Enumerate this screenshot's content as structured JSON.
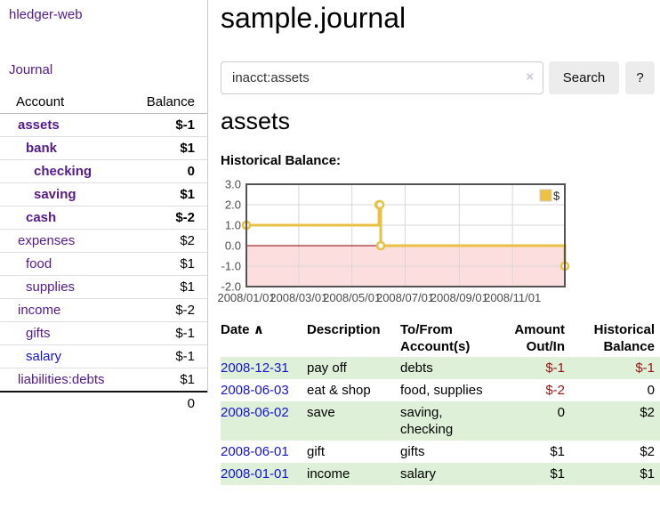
{
  "app": {
    "brand": "hledger-web",
    "nav_journal": "Journal"
  },
  "sidebar": {
    "header": {
      "account": "Account",
      "balance": "Balance"
    },
    "accounts": [
      {
        "name": "assets",
        "indent": 0,
        "bold": true,
        "name_color": "purple",
        "balance": "$-1",
        "balance_color": "neg-strong"
      },
      {
        "name": "bank",
        "indent": 1,
        "bold": true,
        "name_color": "purple",
        "balance": "$1",
        "balance_color": ""
      },
      {
        "name": "checking",
        "indent": 2,
        "bold": true,
        "name_color": "purple",
        "balance": "0",
        "balance_color": ""
      },
      {
        "name": "saving",
        "indent": 2,
        "bold": true,
        "name_color": "purple",
        "balance": "$1",
        "balance_color": ""
      },
      {
        "name": "cash",
        "indent": 1,
        "bold": true,
        "name_color": "purple",
        "balance": "$-2",
        "balance_color": "neg-strong"
      },
      {
        "name": "expenses",
        "indent": 0,
        "bold": false,
        "name_color": "purple",
        "balance": "$2",
        "balance_color": ""
      },
      {
        "name": "food",
        "indent": 1,
        "bold": false,
        "name_color": "purple",
        "balance": "$1",
        "balance_color": ""
      },
      {
        "name": "supplies",
        "indent": 1,
        "bold": false,
        "name_color": "purple",
        "balance": "$1",
        "balance_color": ""
      },
      {
        "name": "income",
        "indent": 0,
        "bold": false,
        "name_color": "purple",
        "balance": "$-2",
        "balance_color": "neg-soft"
      },
      {
        "name": "gifts",
        "indent": 1,
        "bold": false,
        "name_color": "purple",
        "balance": "$-1",
        "balance_color": "neg-soft"
      },
      {
        "name": "salary",
        "indent": 1,
        "bold": false,
        "name_color": "blue",
        "balance": "$-1",
        "balance_color": "neg-soft"
      },
      {
        "name": "liabilities:debts",
        "indent": 0,
        "bold": false,
        "name_color": "purple",
        "balance": "$1",
        "balance_color": ""
      }
    ],
    "total": "0"
  },
  "header": {
    "title": "sample.journal"
  },
  "search": {
    "value": "inacct:assets",
    "clear_icon": "×",
    "button_label": "Search",
    "help_label": "?"
  },
  "account_page": {
    "heading": "assets",
    "chart_label": "Historical Balance:"
  },
  "chart_data": {
    "type": "line",
    "title": "Historical Balance:",
    "x_range": [
      "2008-01-01",
      "2008-12-31"
    ],
    "ylim": [
      -2,
      3
    ],
    "y_ticks": [
      "3.0",
      "2.0",
      "1.0",
      "0.0",
      "-1.0",
      "-2.0"
    ],
    "x_ticks": [
      {
        "date": "2008-01-01",
        "label": "2008/01/01"
      },
      {
        "date": "2008-03-01",
        "label": "2008/03/01"
      },
      {
        "date": "2008-05-01",
        "label": "2008/05/01"
      },
      {
        "date": "2008-07-01",
        "label": "2008/07/01"
      },
      {
        "date": "2008-09-01",
        "label": "2008/09/01"
      },
      {
        "date": "2008-11-01",
        "label": "2008/11/01"
      }
    ],
    "series": [
      {
        "name": "$",
        "color": "#e9c044",
        "steps": true,
        "points": [
          [
            "2008-01-01",
            1
          ],
          [
            "2008-06-01",
            2
          ],
          [
            "2008-06-02",
            2
          ],
          [
            "2008-06-03",
            0
          ],
          [
            "2008-12-31",
            -1
          ]
        ]
      }
    ],
    "negative_region": {
      "from": 0,
      "to": -2,
      "fill": "#fcdede",
      "zero_line_color": "#8b0000"
    },
    "legend": {
      "position": "top-right",
      "entries": [
        {
          "label": "$",
          "color": "#edc240"
        }
      ]
    },
    "grid": true
  },
  "register": {
    "columns": {
      "date": "Date",
      "sort_icon": "∧",
      "description": "Description",
      "accounts": "To/From Account(s)",
      "amount": "Amount Out/In",
      "balance": "Historical Balance"
    },
    "rows": [
      {
        "date": "2008-12-31",
        "description": "pay off",
        "accounts": "debts",
        "amount": "$-1",
        "amount_negative": true,
        "balance": "$-1",
        "balance_negative": true,
        "shaded": true
      },
      {
        "date": "2008-06-03",
        "description": "eat & shop",
        "accounts": "food, supplies",
        "amount": "$-2",
        "amount_negative": true,
        "balance": "0",
        "balance_negative": false,
        "shaded": false
      },
      {
        "date": "2008-06-02",
        "description": "save",
        "accounts": "saving, checking",
        "amount": "0",
        "amount_negative": false,
        "balance": "$2",
        "balance_negative": false,
        "shaded": true
      },
      {
        "date": "2008-06-01",
        "description": "gift",
        "accounts": "gifts",
        "amount": "$1",
        "amount_negative": false,
        "balance": "$2",
        "balance_negative": false,
        "shaded": false
      },
      {
        "date": "2008-01-01",
        "description": "income",
        "accounts": "salary",
        "amount": "$1",
        "amount_negative": false,
        "balance": "$1",
        "balance_negative": false,
        "shaded": true
      }
    ]
  },
  "colors": {
    "link_purple": "#551a8b",
    "link_blue": "#1414d2",
    "negative_strong": "#8b1515",
    "negative_soft": "#b56a6a",
    "row_shade_green": "#dff0d8",
    "chart_line_gold": "#edc240",
    "chart_negative_fill": "#fcdede",
    "chart_zero_line": "#8b0000"
  }
}
